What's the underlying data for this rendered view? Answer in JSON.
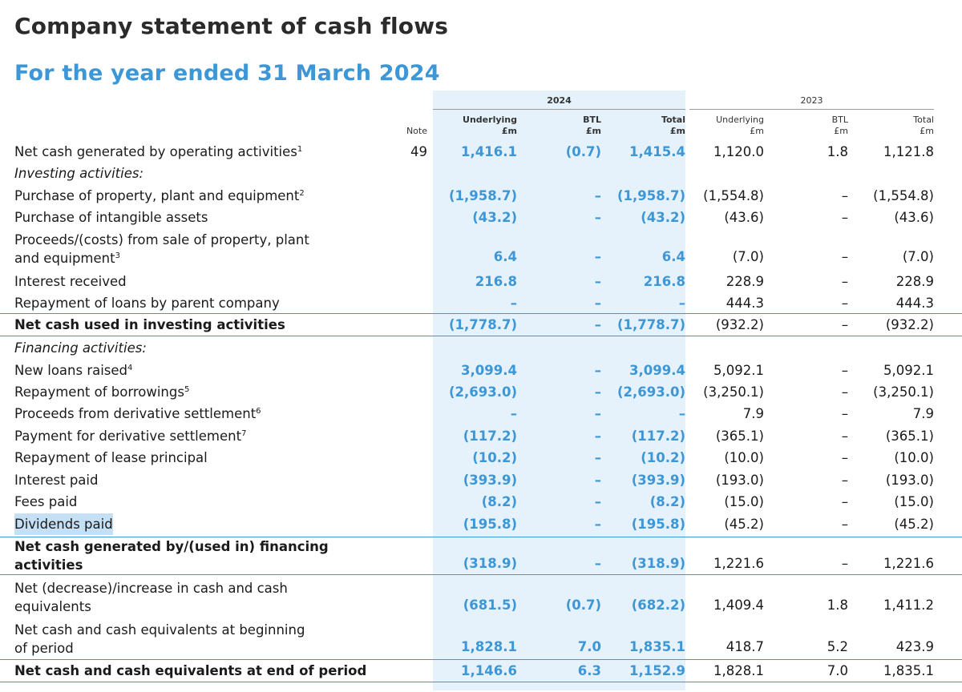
{
  "title": "Company statement of cash flows",
  "subtitle": "For the year ended 31 March 2024",
  "years": {
    "current": "2024",
    "prior": "2023"
  },
  "headers": {
    "note": "Note",
    "columns": [
      {
        "line1": "Underlying",
        "line2": "£m"
      },
      {
        "line1": "BTL",
        "line2": "£m"
      },
      {
        "line1": "Total",
        "line2": "£m"
      },
      {
        "line1": "Underlying",
        "line2": "£m"
      },
      {
        "line1": "BTL",
        "line2": "£m"
      },
      {
        "line1": "Total",
        "line2": "£m"
      }
    ]
  },
  "rows": [
    {
      "label": "Net cash generated by operating activities",
      "sup": "1",
      "note": "49",
      "values": [
        "1,416.1",
        "(0.7)",
        "1,415.4",
        "1,120.0",
        "1.8",
        "1,121.8"
      ]
    },
    {
      "label": "Investing activities:",
      "sup": "",
      "note": "",
      "values": [
        "",
        "",
        "",
        "",
        "",
        ""
      ]
    },
    {
      "label": "Purchase of property, plant and equipment",
      "sup": "2",
      "note": "",
      "values": [
        "(1,958.7)",
        "–",
        "(1,958.7)",
        "(1,554.8)",
        "–",
        "(1,554.8)"
      ]
    },
    {
      "label": "Purchase of intangible assets",
      "sup": "",
      "note": "",
      "values": [
        "(43.2)",
        "–",
        "(43.2)",
        "(43.6)",
        "–",
        "(43.6)"
      ]
    },
    {
      "label_l1": "Proceeds/(costs) from sale of property, plant",
      "label_l2": "and equipment",
      "sup": "3",
      "note": "",
      "values": [
        "6.4",
        "–",
        "6.4",
        "(7.0)",
        "–",
        "(7.0)"
      ]
    },
    {
      "label": "Interest received",
      "sup": "",
      "note": "",
      "values": [
        "216.8",
        "–",
        "216.8",
        "228.9",
        "–",
        "228.9"
      ]
    },
    {
      "label": "Repayment of loans by parent company",
      "sup": "",
      "note": "",
      "values": [
        "–",
        "–",
        "–",
        "444.3",
        "–",
        "444.3"
      ]
    },
    {
      "label": "Net cash used in investing activities",
      "sup": "",
      "note": "",
      "values": [
        "(1,778.7)",
        "–",
        "(1,778.7)",
        "(932.2)",
        "–",
        "(932.2)"
      ]
    },
    {
      "label": "Financing activities:",
      "sup": "",
      "note": "",
      "values": [
        "",
        "",
        "",
        "",
        "",
        ""
      ]
    },
    {
      "label": "New loans raised",
      "sup": "4",
      "note": "",
      "values": [
        "3,099.4",
        "–",
        "3,099.4",
        "5,092.1",
        "–",
        "5,092.1"
      ]
    },
    {
      "label": "Repayment of borrowings",
      "sup": "5",
      "note": "",
      "values": [
        "(2,693.0)",
        "–",
        "(2,693.0)",
        "(3,250.1)",
        "–",
        "(3,250.1)"
      ]
    },
    {
      "label": "Proceeds from derivative settlement",
      "sup": "6",
      "note": "",
      "values": [
        "–",
        "–",
        "–",
        "7.9",
        "–",
        "7.9"
      ]
    },
    {
      "label": "Payment for derivative settlement",
      "sup": "7",
      "note": "",
      "values": [
        "(117.2)",
        "–",
        "(117.2)",
        "(365.1)",
        "–",
        "(365.1)"
      ]
    },
    {
      "label": "Repayment of lease principal",
      "sup": "",
      "note": "",
      "values": [
        "(10.2)",
        "–",
        "(10.2)",
        "(10.0)",
        "–",
        "(10.0)"
      ]
    },
    {
      "label": "Interest paid",
      "sup": "",
      "note": "",
      "values": [
        "(393.9)",
        "–",
        "(393.9)",
        "(193.0)",
        "–",
        "(193.0)"
      ]
    },
    {
      "label": "Fees paid",
      "sup": "",
      "note": "",
      "values": [
        "(8.2)",
        "–",
        "(8.2)",
        "(15.0)",
        "–",
        "(15.0)"
      ]
    },
    {
      "label": "Dividends paid",
      "sup": "",
      "note": "",
      "values": [
        "(195.8)",
        "–",
        "(195.8)",
        "(45.2)",
        "–",
        "(45.2)"
      ]
    },
    {
      "label_l1": "Net cash generated by/(used in) financing",
      "label_l2": "activities",
      "sup": "",
      "note": "",
      "values": [
        "(318.9)",
        "–",
        "(318.9)",
        "1,221.6",
        "–",
        "1,221.6"
      ]
    },
    {
      "label_l1": "Net (decrease)/increase in cash and cash",
      "label_l2": "equivalents",
      "sup": "",
      "note": "",
      "values": [
        "(681.5)",
        "(0.7)",
        "(682.2)",
        "1,409.4",
        "1.8",
        "1,411.2"
      ]
    },
    {
      "label_l1": "Net cash and cash equivalents at beginning",
      "label_l2": "of period",
      "sup": "",
      "note": "",
      "values": [
        "1,828.1",
        "7.0",
        "1,835.1",
        "418.7",
        "5.2",
        "423.9"
      ]
    },
    {
      "label": "Net cash and cash equivalents at end of period",
      "sup": "",
      "note": "",
      "values": [
        "1,146.6",
        "6.3",
        "1,152.9",
        "1,828.1",
        "7.0",
        "1,835.1"
      ]
    }
  ]
}
